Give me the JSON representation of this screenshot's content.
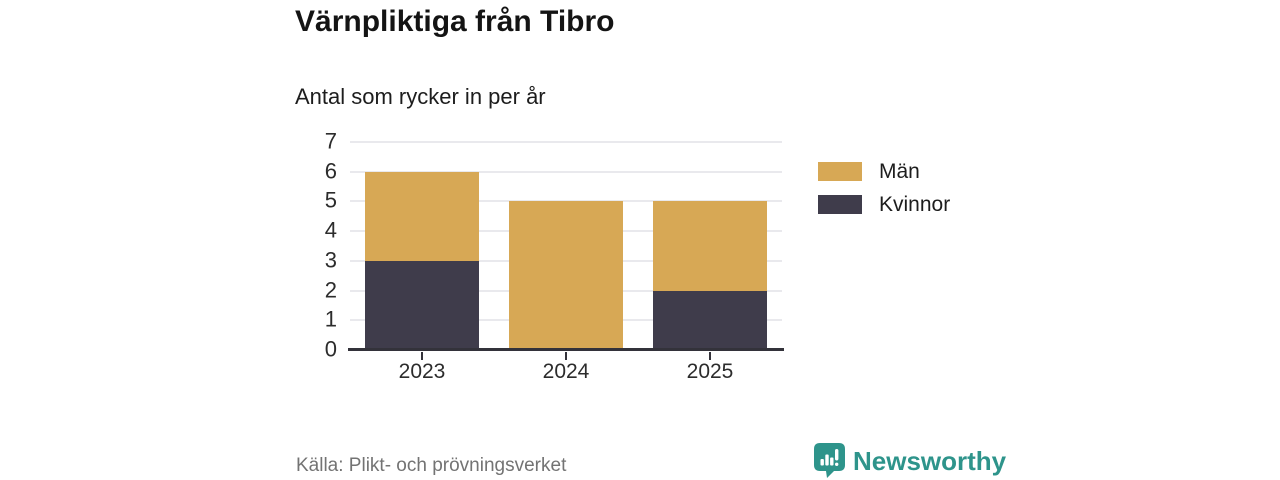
{
  "chart_data": {
    "type": "bar",
    "stacked": true,
    "title": "Värnpliktiga från Tibro",
    "subtitle": "Antal som rycker in per år",
    "categories": [
      "2023",
      "2024",
      "2025"
    ],
    "series": [
      {
        "name": "Män",
        "color": "#d7a855",
        "values": [
          3,
          5,
          3
        ]
      },
      {
        "name": "Kvinnor",
        "color": "#3f3c4b",
        "values": [
          3,
          0,
          2
        ]
      }
    ],
    "stack_order_bottom_to_top": [
      "Kvinnor",
      "Män"
    ],
    "totals": [
      6,
      5,
      5
    ],
    "xlabel": "",
    "ylabel": "",
    "ylim": [
      0,
      7
    ],
    "yticks": [
      0,
      1,
      2,
      3,
      4,
      5,
      6,
      7
    ],
    "grid": true,
    "legend_position": "right"
  },
  "footer": {
    "source": "Källa: Plikt- och prövningsverket",
    "brand": "Newsworthy"
  },
  "colors": {
    "men": "#d7a855",
    "women": "#3f3c4b",
    "brand_teal": "#2e948b",
    "gridline": "#e9e9ed",
    "axis": "#33323a"
  }
}
